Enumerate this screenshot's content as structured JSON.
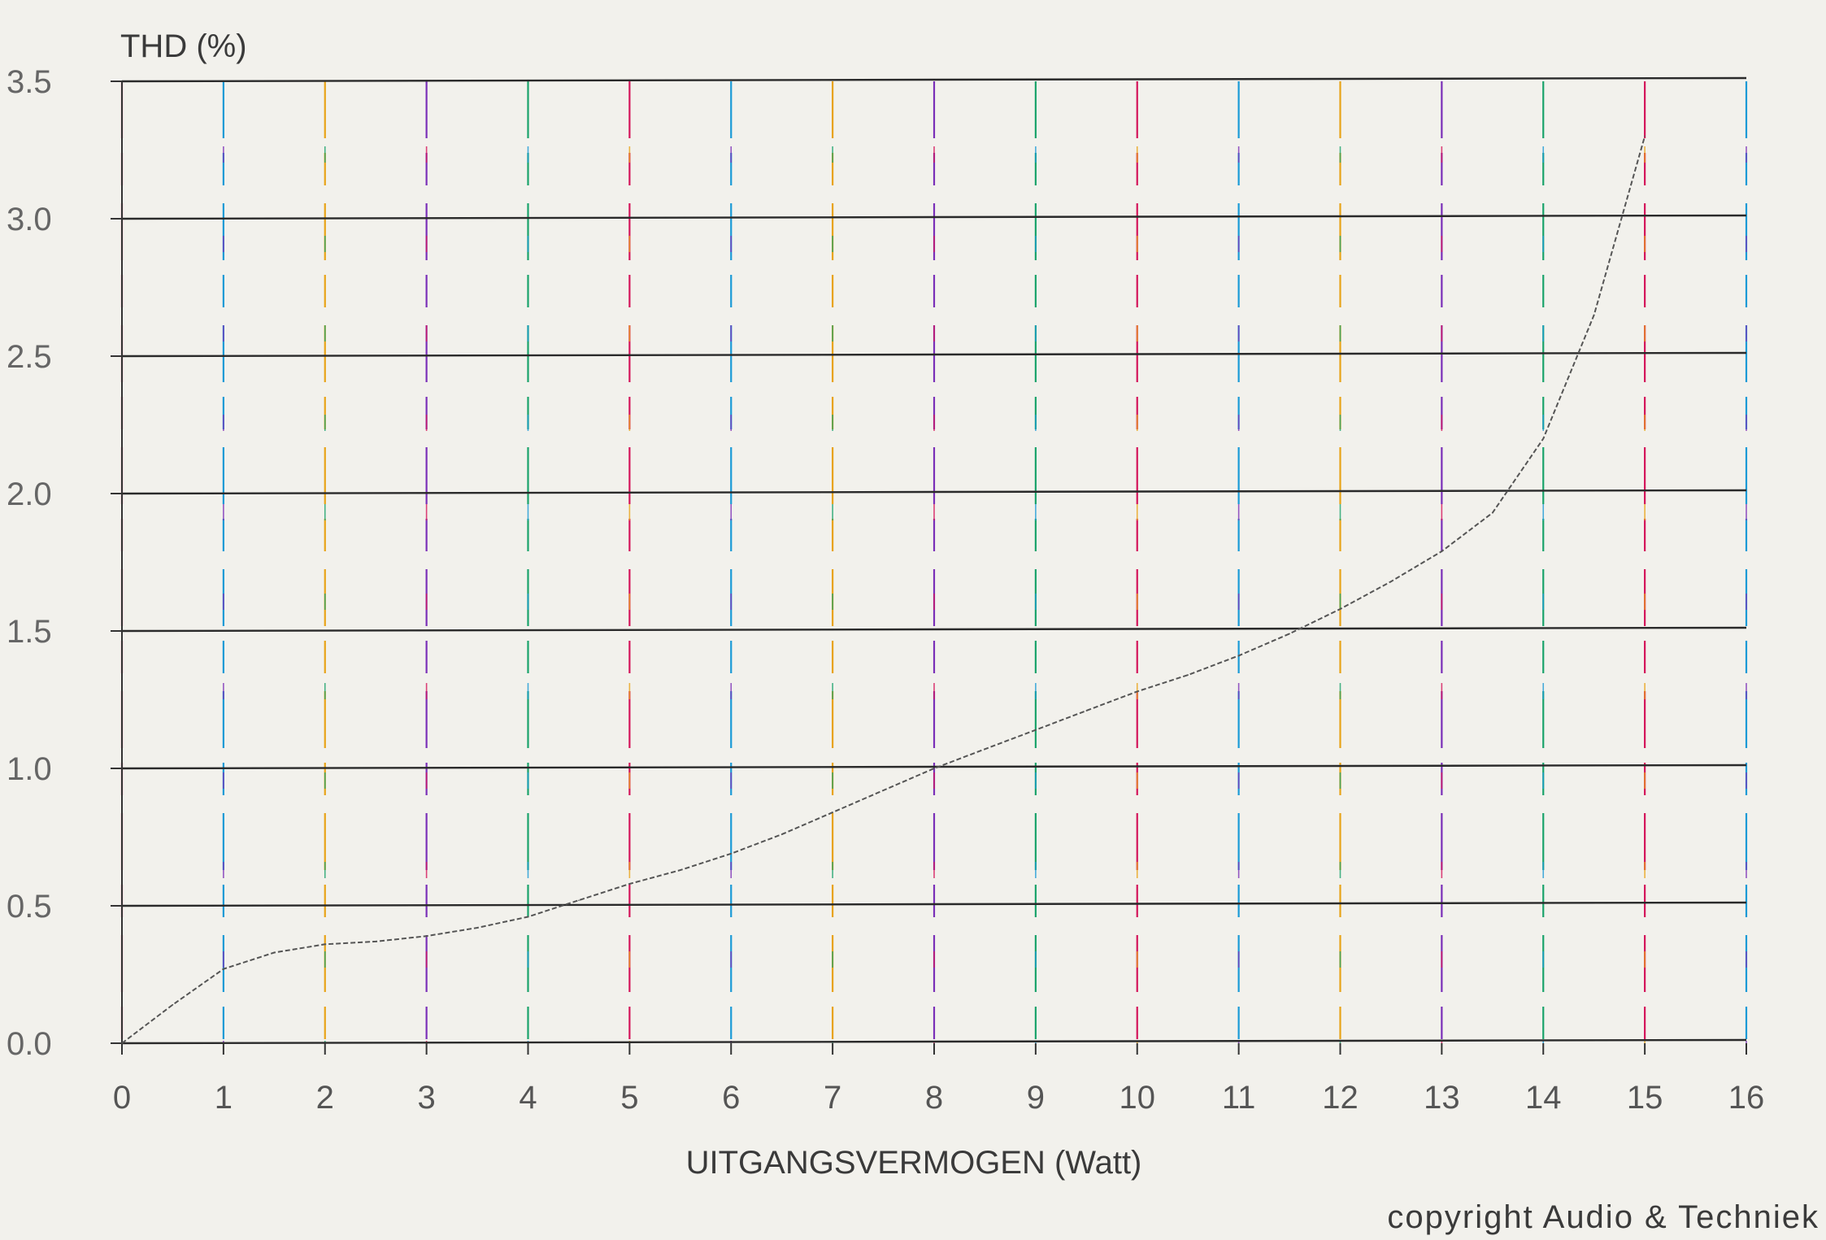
{
  "chart_data": {
    "type": "line",
    "title": "",
    "ylabel": "THD (%)",
    "xlabel": "UITGANGSVERMOGEN (Watt)",
    "copyright": "copyright Audio & Techniek",
    "xlim": [
      0,
      16
    ],
    "ylim": [
      0,
      3.5
    ],
    "grid": true,
    "x_ticks": [
      "0",
      "1",
      "2",
      "3",
      "4",
      "5",
      "6",
      "7",
      "8",
      "9",
      "10",
      "11",
      "12",
      "13",
      "14",
      "15",
      "16"
    ],
    "y_ticks": [
      "0.0",
      "0.5",
      "1.0",
      "1.5",
      "2.0",
      "2.5",
      "3.0",
      "3.5"
    ],
    "series": [
      {
        "x": [
          0,
          0.5,
          1,
          1.5,
          2,
          2.5,
          3,
          3.5,
          4,
          4.5,
          5,
          5.5,
          6,
          6.5,
          7,
          7.5,
          8,
          8.5,
          9,
          9.5,
          10,
          10.5,
          11,
          11.5,
          12,
          12.5,
          13,
          13.5,
          14,
          14.5,
          15
        ],
        "y": [
          0.0,
          0.14,
          0.27,
          0.33,
          0.36,
          0.37,
          0.39,
          0.42,
          0.46,
          0.52,
          0.58,
          0.63,
          0.69,
          0.76,
          0.84,
          0.92,
          1.0,
          1.07,
          1.14,
          1.21,
          1.28,
          1.34,
          1.41,
          1.49,
          1.58,
          1.68,
          1.79,
          1.93,
          2.2,
          2.65,
          3.3
        ],
        "color": "#555555"
      }
    ],
    "gridline_colors": [
      "#d4145a",
      "#1a9ad6",
      "#e8a317",
      "#7a2fb8",
      "#1aa36b"
    ]
  }
}
